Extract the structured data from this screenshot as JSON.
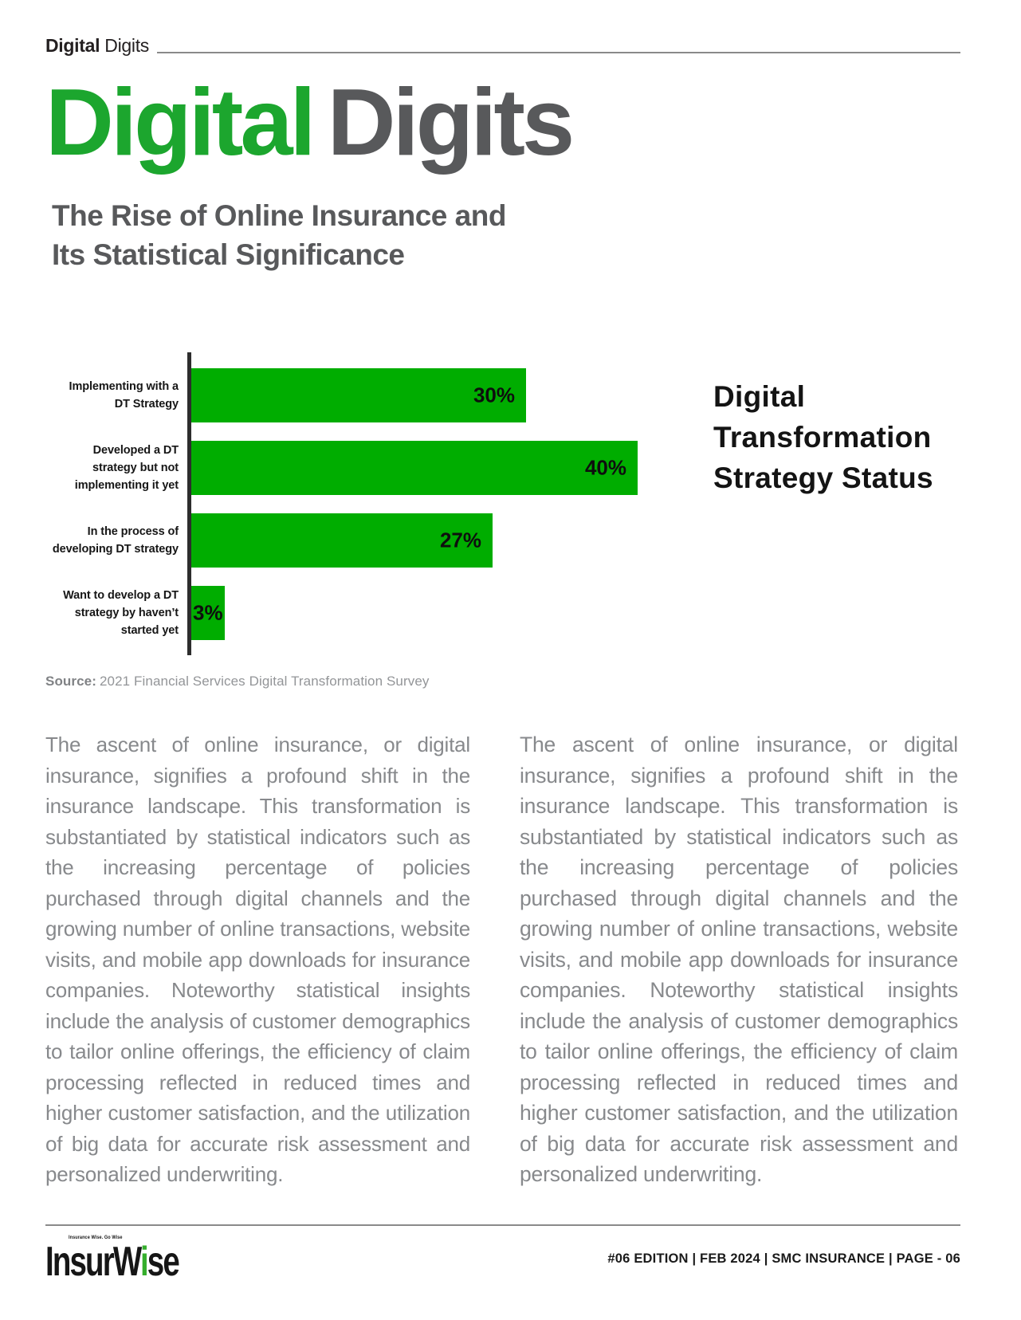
{
  "header": {
    "kicker_bold": "Digital",
    "kicker_regular": "Digits",
    "title_green": "Digital",
    "title_gray": "Digits",
    "subtitle_line1": "The Rise of Online Insurance and",
    "subtitle_line2": "Its Statistical Significance"
  },
  "chart": {
    "title_lines": [
      "Digital",
      "Transformation",
      "Strategy Status"
    ],
    "source_label": "Source:",
    "source_text": "2021 Financial Services Digital Transformation Survey"
  },
  "chart_data": {
    "type": "bar",
    "orientation": "horizontal",
    "title": "Digital Transformation Strategy Status",
    "categories": [
      "Implementing with a DT Strategy",
      "Developed a DT strategy but not implementing it yet",
      "In the process of developing DT strategy",
      "Want to develop a DT strategy by haven’t started yet"
    ],
    "category_line_breaks": [
      [
        "Implementing with a",
        "DT Strategy"
      ],
      [
        "Developed a DT",
        "strategy but not",
        "implementing it yet"
      ],
      [
        "In the process of",
        "developing DT strategy"
      ],
      [
        "Want to develop a DT",
        "strategy by haven’t",
        "started yet"
      ]
    ],
    "values": [
      30,
      40,
      27,
      3
    ],
    "value_labels": [
      "30%",
      "40%",
      "27%",
      "3%"
    ],
    "xlim": [
      0,
      40
    ],
    "grid": false,
    "legend": false,
    "bar_color": "#00AD00",
    "source": "2021 Financial Services Digital Transformation Survey"
  },
  "body": {
    "column_left": "The ascent of online insurance, or digital insurance, signifies a profound shift in the insurance landscape. This transformation is substantiated by statistical indicators such as the increasing percentage of policies purchased through digital channels and the growing number of online transactions, website visits, and mobile app downloads for insurance companies. Noteworthy statistical insights include the analysis of customer demographics to tailor online offerings, the efficiency of claim processing reflected in reduced times and higher customer satisfaction, and the utilization of big data for accurate risk assessment and personalized underwriting.",
    "column_right": "The ascent of online insurance, or digital insurance, signifies a profound shift in the insurance landscape. This transformation is substantiated by statistical indicators such as the increasing percentage of policies purchased through digital channels and the growing number of online transactions, website visits, and mobile app downloads for insurance companies. Noteworthy statistical insights include the analysis of customer demographics to tailor online offerings, the efficiency of claim processing reflected in reduced times and higher customer satisfaction, and the utilization of big data for accurate risk assessment and personalized underwriting."
  },
  "footer": {
    "logo_tagline": "Insurance Wise. Go Wise",
    "logo_text_before": "InsurW",
    "logo_green_letter": "i",
    "logo_text_after": "se",
    "meta": "#06 EDITION | FEB 2024 |  SMC INSURANCE | PAGE - 06"
  },
  "colors": {
    "headline_green": "#1CA62E",
    "bar_green": "#00AD00",
    "dark_gray": "#58595B",
    "body_gray": "#87898C",
    "source_gray": "#939598",
    "rule_gray": "#8A8A8A"
  }
}
